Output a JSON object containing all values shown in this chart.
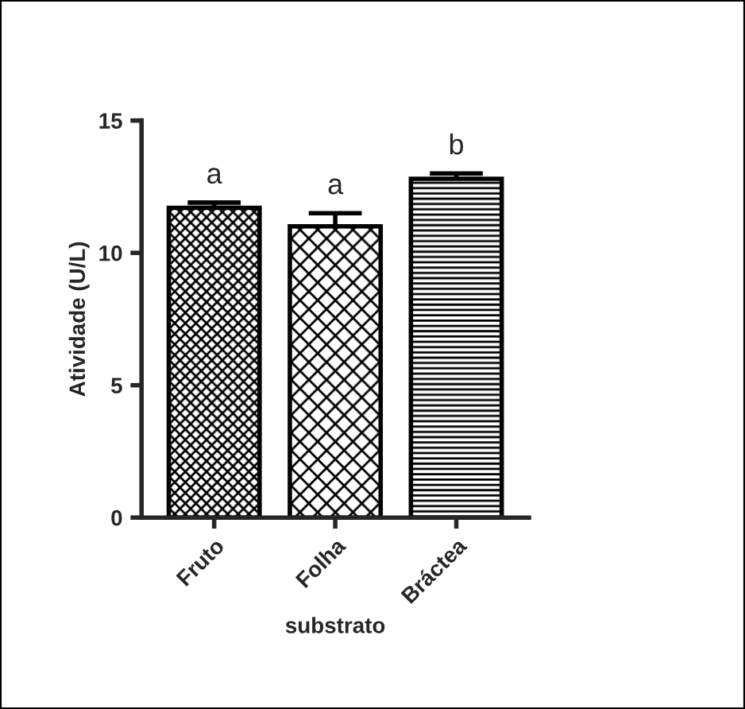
{
  "chart_data": {
    "type": "bar",
    "xlabel": "substrato",
    "ylabel": "Atividade (U/L)",
    "categories": [
      "Fruto",
      "Folha",
      "Bráctea"
    ],
    "values": [
      11.7,
      11.0,
      12.8
    ],
    "errors": [
      0.2,
      0.5,
      0.2
    ],
    "colors": [
      "#000000",
      "#000000",
      "#000000"
    ],
    "ylim": [
      0,
      15
    ],
    "yticks": [
      0,
      5,
      10,
      15
    ],
    "grid": false,
    "annotations": [
      "a",
      "a",
      "b"
    ]
  }
}
